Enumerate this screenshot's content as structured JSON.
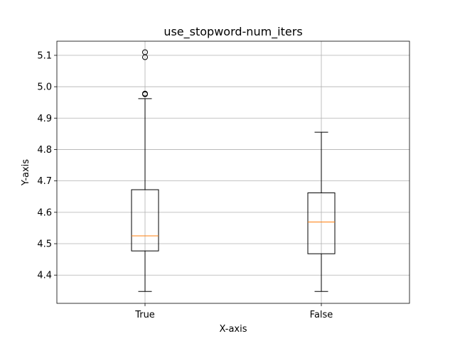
{
  "chart_data": {
    "type": "box",
    "title": "use_stopword-num_iters",
    "xlabel": "X-axis",
    "ylabel": "Y-axis",
    "categories": [
      "True",
      "False"
    ],
    "ylim": [
      4.31,
      5.145
    ],
    "yticks": [
      4.4,
      4.5,
      4.6,
      4.7,
      4.8,
      4.9,
      5.0,
      5.1
    ],
    "ytick_labels": [
      "4.4",
      "4.5",
      "4.6",
      "4.7",
      "4.8",
      "4.9",
      "5.0",
      "5.1"
    ],
    "grid": true,
    "boxes": [
      {
        "category": "True",
        "whisker_low": 4.348,
        "q1": 4.477,
        "median": 4.525,
        "q3": 4.672,
        "whisker_high": 4.962,
        "outliers": [
          4.976,
          4.978,
          5.094,
          5.11
        ]
      },
      {
        "category": "False",
        "whisker_low": 4.348,
        "q1": 4.468,
        "median": 4.569,
        "q3": 4.662,
        "whisker_high": 4.855,
        "outliers": []
      }
    ],
    "colors": {
      "box": "#000000",
      "median": "#ff7f0e",
      "grid": "#b0b0b0"
    }
  }
}
